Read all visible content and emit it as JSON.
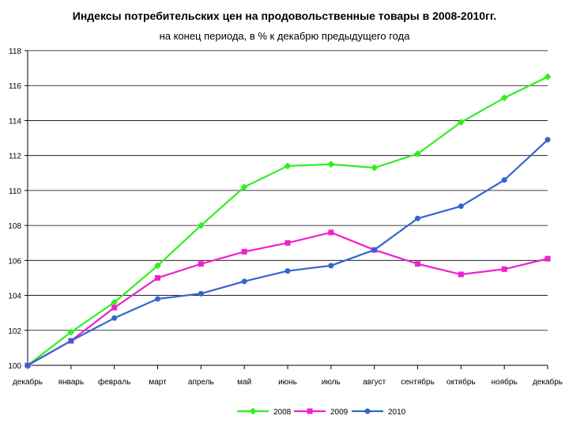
{
  "chart_data": {
    "type": "line",
    "title": "Индексы потребительских цен на продовольственные товары в 2008-2010гг.",
    "subtitle": "на конец периода, в % к декабрю предыдущего года",
    "xlabel": "",
    "ylabel": "",
    "categories": [
      "декабрь",
      "январь",
      "февраль",
      "март",
      "апрель",
      "май",
      "июнь",
      "июль",
      "август",
      "сентябрь",
      "октябрь",
      "ноябрь",
      "декабрь"
    ],
    "ylim": [
      100,
      118
    ],
    "yticks": [
      100,
      102,
      104,
      106,
      108,
      110,
      112,
      114,
      116,
      118
    ],
    "grid": true,
    "legend_position": "bottom",
    "series": [
      {
        "name": "2008",
        "color": "#33ee22",
        "marker": "diamond",
        "values": [
          100,
          101.9,
          103.6,
          105.7,
          108.0,
          110.2,
          111.4,
          111.5,
          111.3,
          112.1,
          113.9,
          115.3,
          116.5
        ]
      },
      {
        "name": "2009",
        "color": "#ee22cc",
        "marker": "square",
        "values": [
          100,
          101.4,
          103.3,
          105.0,
          105.8,
          106.5,
          107.0,
          107.6,
          106.6,
          105.8,
          105.2,
          105.5,
          106.1
        ]
      },
      {
        "name": "2010",
        "color": "#3366cc",
        "marker": "circle",
        "values": [
          100,
          101.4,
          102.7,
          103.8,
          104.1,
          104.8,
          105.4,
          105.7,
          106.6,
          108.4,
          109.1,
          110.6,
          112.9
        ]
      }
    ]
  }
}
